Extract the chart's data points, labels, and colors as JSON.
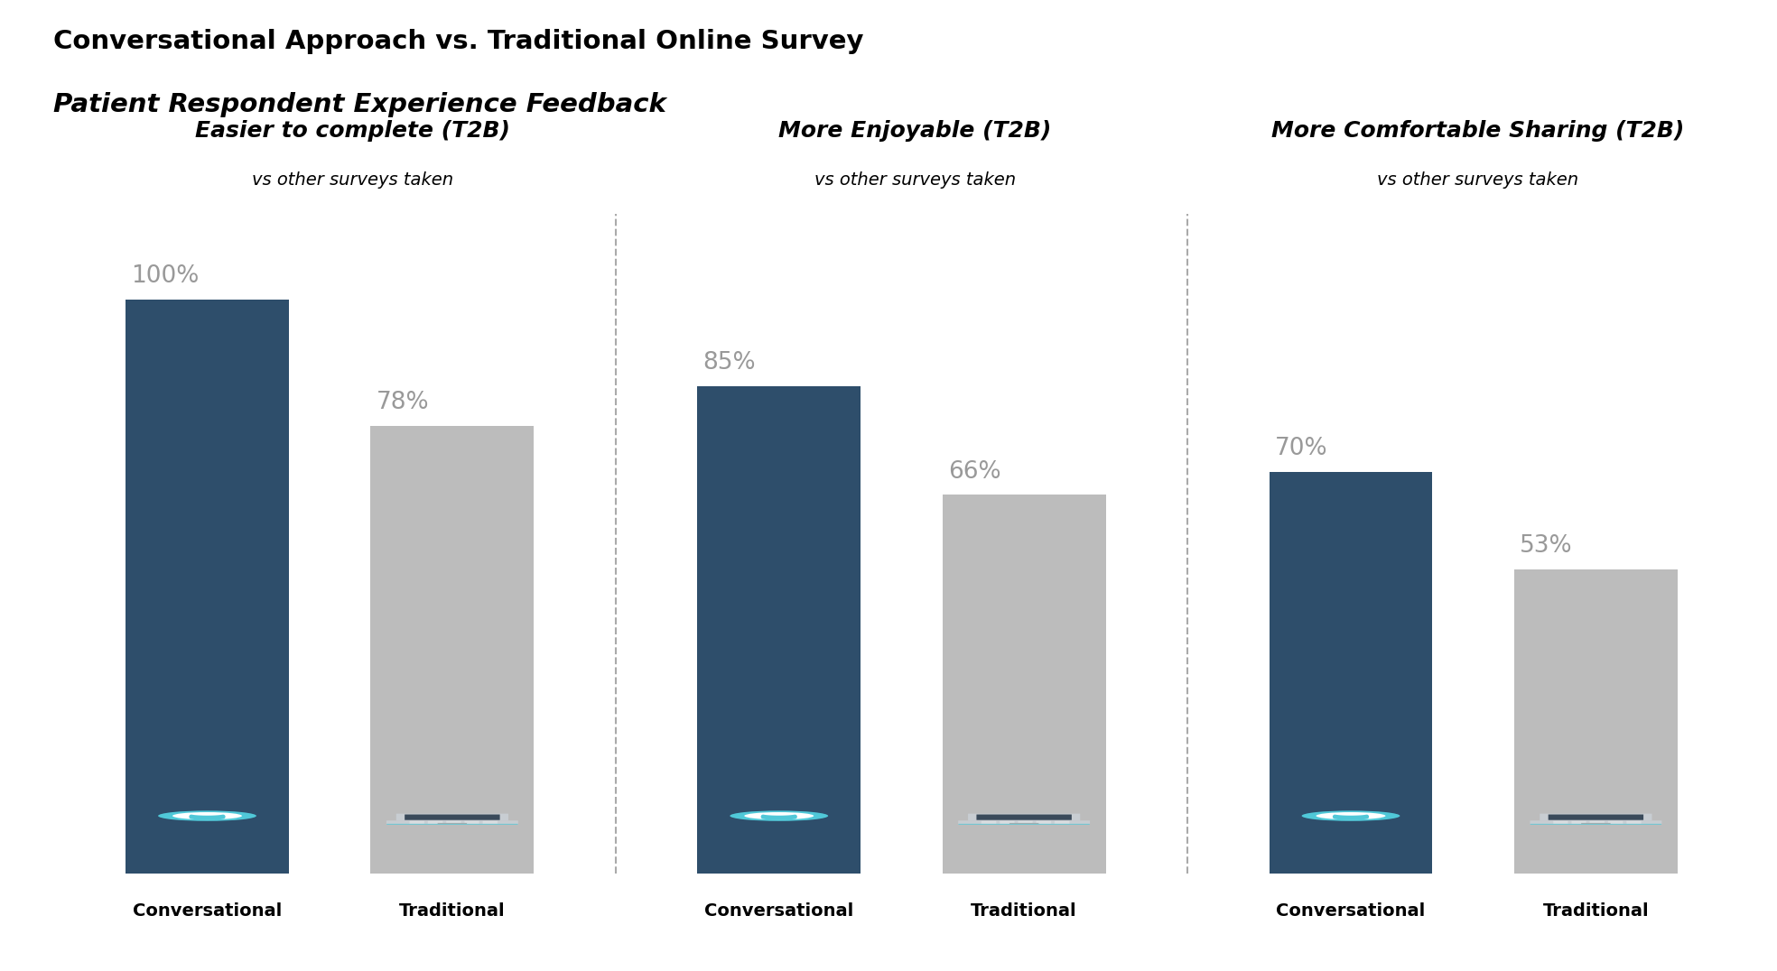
{
  "title_line1": "Conversational Approach vs. Traditional Online Survey",
  "title_line2": "Patient Respondent Experience Feedback",
  "panels": [
    {
      "title_bold": "Easier to complete ",
      "title_italic": "(T2B)",
      "subtitle": "vs other surveys taken",
      "conv_value": 100,
      "conv_label": "100%",
      "trad_value": 78,
      "trad_label": "78%"
    },
    {
      "title_bold": "More Enjoyable ",
      "title_italic": "(T2B)",
      "subtitle": "vs other surveys taken",
      "conv_value": 85,
      "conv_label": "85%",
      "trad_value": 66,
      "trad_label": "66%"
    },
    {
      "title_bold": "More Comfortable Sharing ",
      "title_italic": "(T2B)",
      "subtitle": "vs other surveys taken",
      "conv_value": 70,
      "conv_label": "70%",
      "trad_value": 53,
      "trad_label": "53%"
    }
  ],
  "conv_color": "#2E4E6B",
  "trad_color": "#BCBCBC",
  "conv_label": "Conversational",
  "trad_label": "Traditional",
  "background_color": "#FFFFFF",
  "divider_color": "#AAAAAA",
  "value_color": "#999999",
  "bubble_color": "#50C8D8",
  "laptop_screen_color": "#3A4A5A",
  "laptop_body_color": "#C8CDD2",
  "laptop_teal_color": "#50C8D8"
}
